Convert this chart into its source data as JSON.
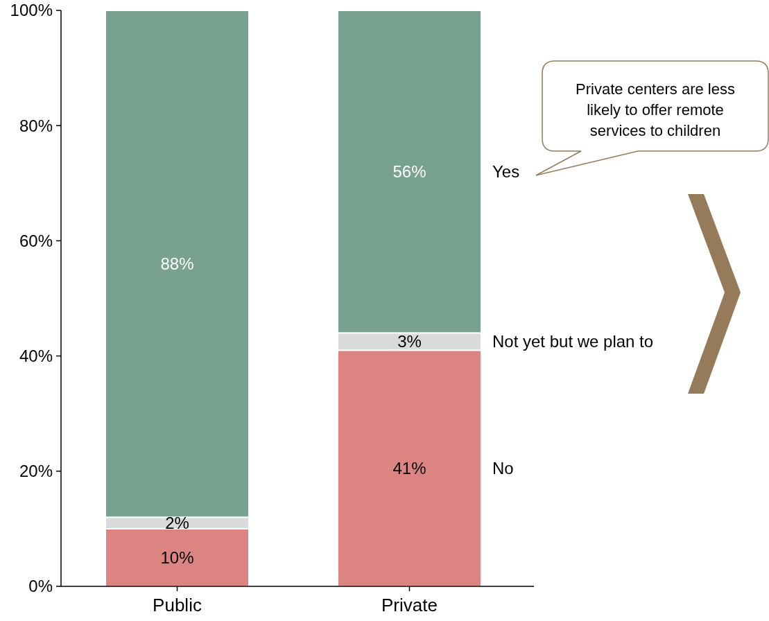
{
  "chart_data": {
    "type": "bar",
    "stacked": true,
    "categories": [
      "Public",
      "Private"
    ],
    "series": [
      {
        "name": "No",
        "color": "#dc8482",
        "values": [
          10,
          41
        ],
        "value_labels": [
          "10%",
          "41%"
        ]
      },
      {
        "name": "Not yet but we plan to",
        "color": "#d9dadb",
        "values": [
          2,
          3
        ],
        "value_labels": [
          "2%",
          "3%"
        ]
      },
      {
        "name": "Yes",
        "color": "#78a28f",
        "values": [
          88,
          56
        ],
        "value_labels": [
          "88%",
          "56%"
        ]
      }
    ],
    "ylim": [
      0,
      100
    ],
    "yticks": [
      {
        "value": 0,
        "label": "0%"
      },
      {
        "value": 20,
        "label": "20%"
      },
      {
        "value": 40,
        "label": "40%"
      },
      {
        "value": 60,
        "label": "60%"
      },
      {
        "value": 80,
        "label": "80%"
      },
      {
        "value": 100,
        "label": "100%"
      }
    ],
    "annotations": [
      "Private centers are less likely to offer remote services to children"
    ]
  }
}
